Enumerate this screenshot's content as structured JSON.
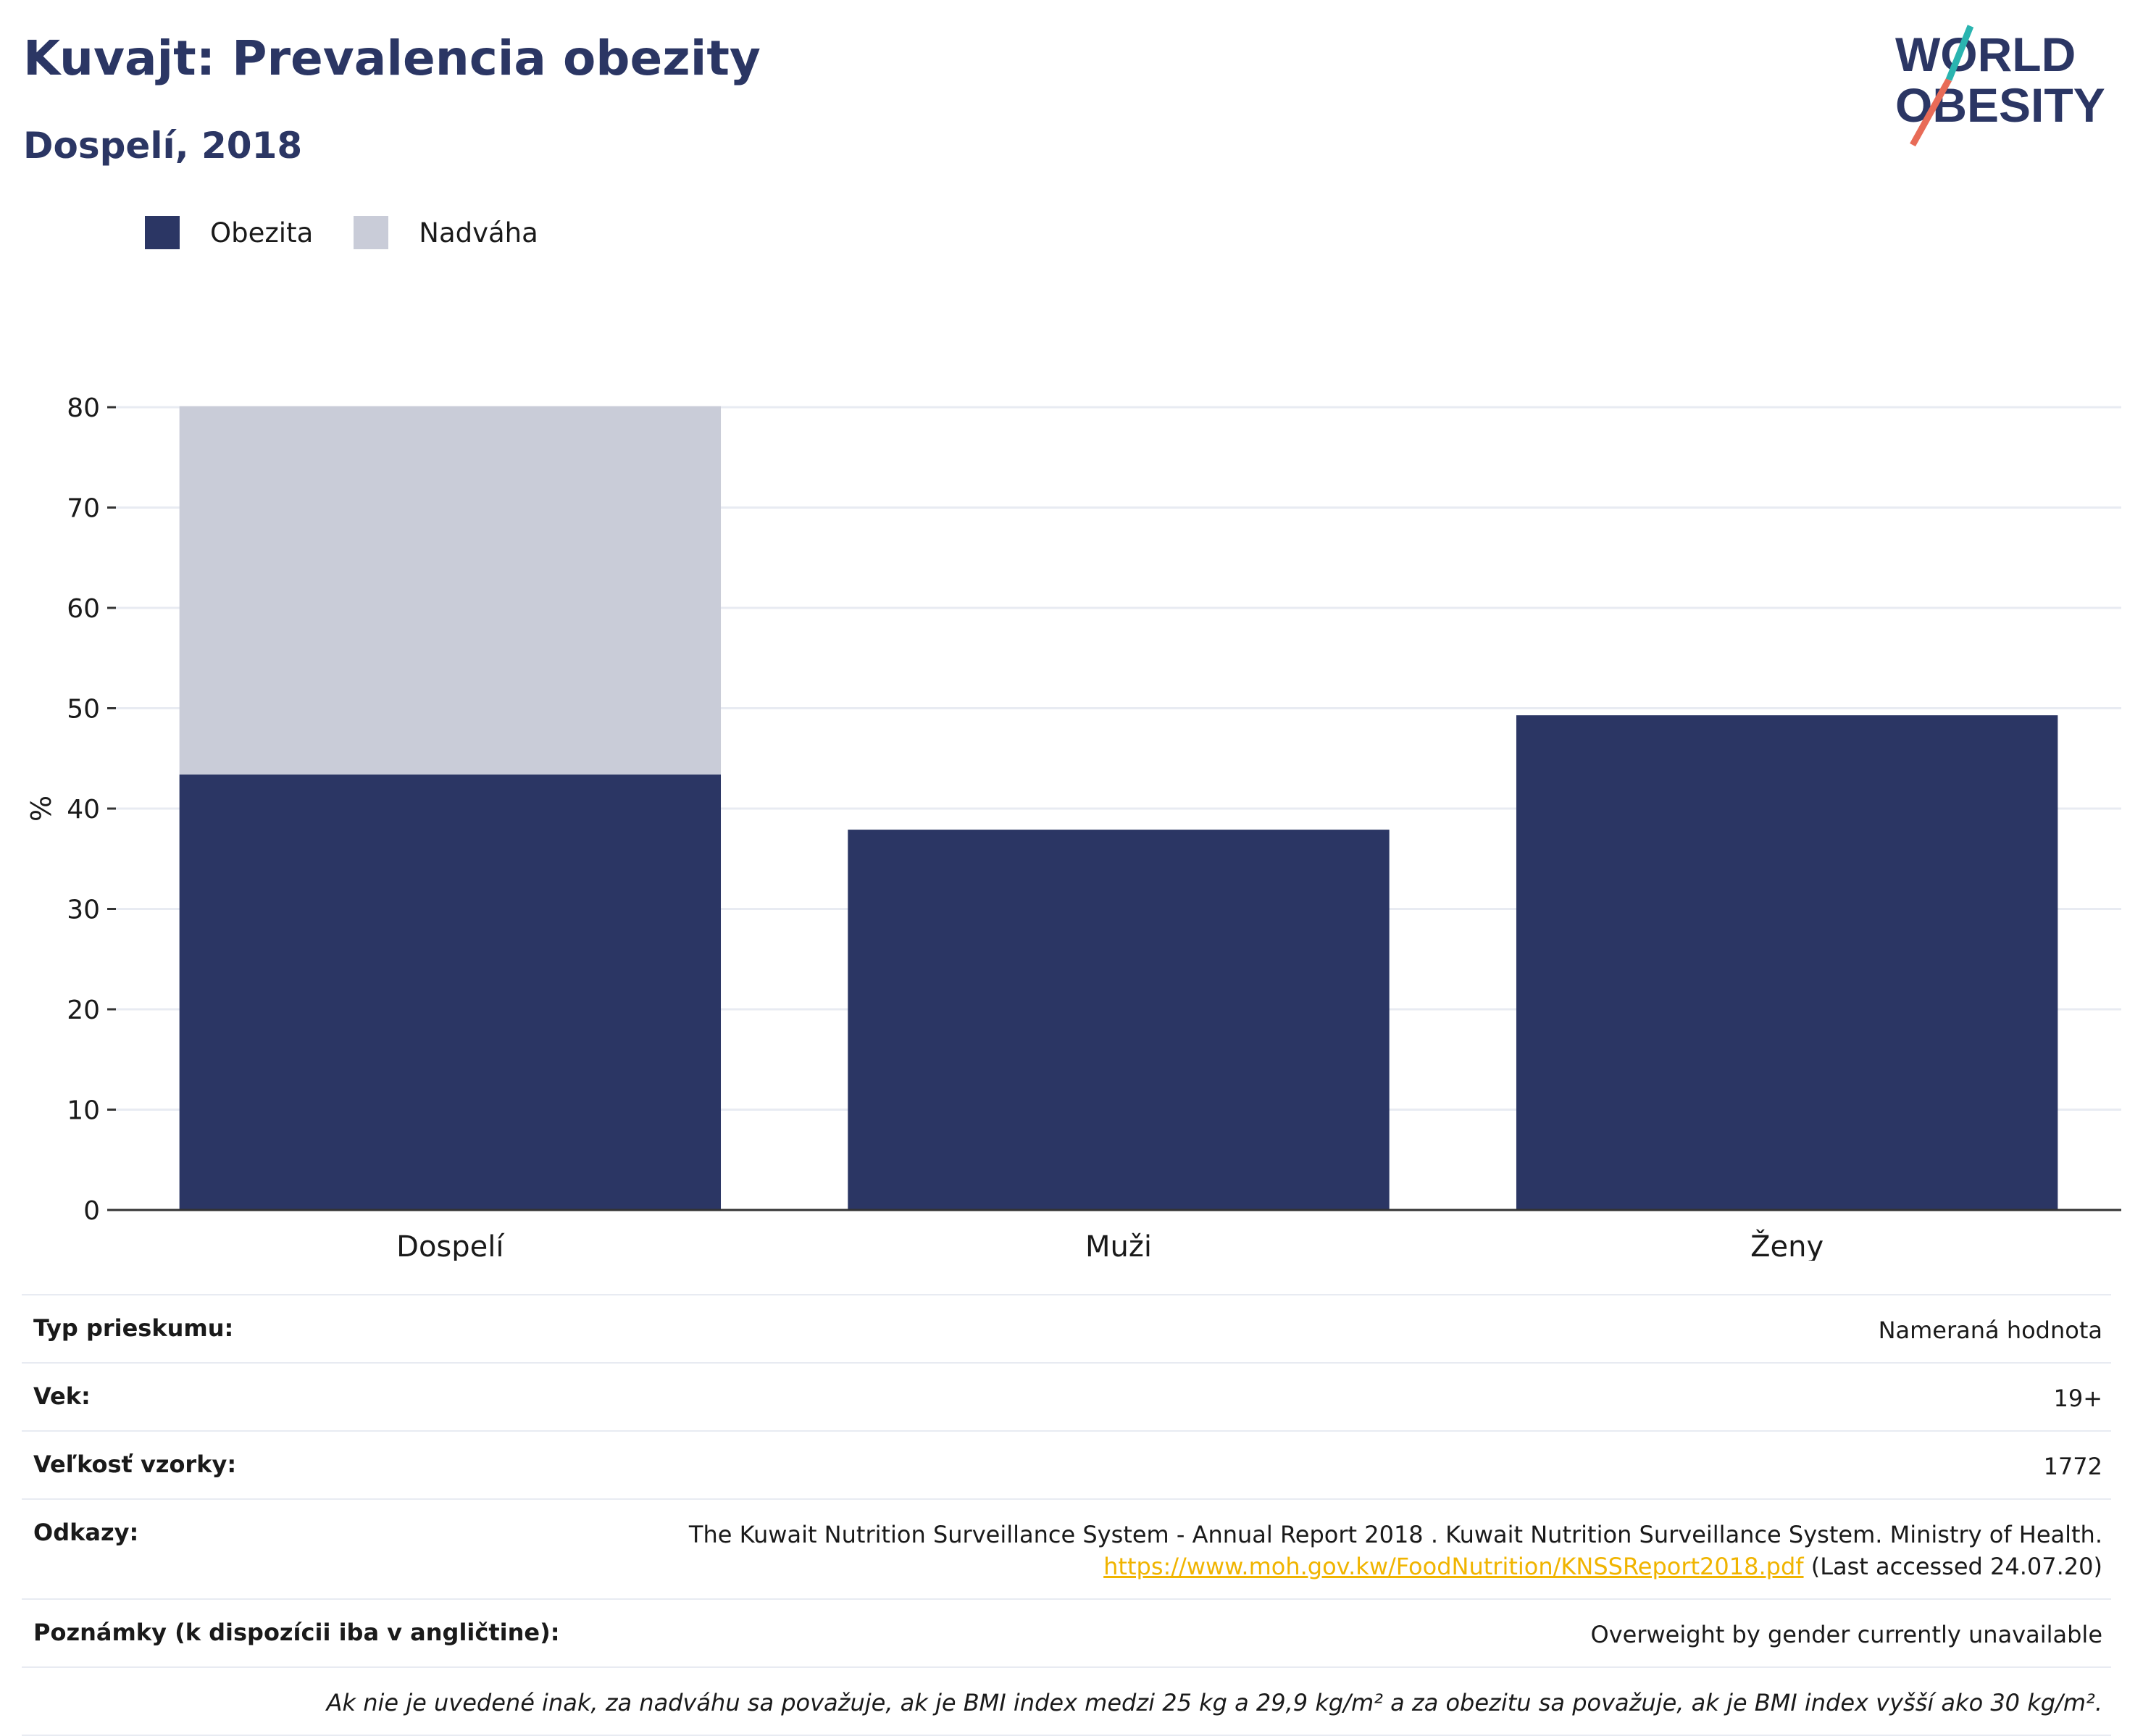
{
  "header": {
    "title": "Kuvajt: Prevalencia obezity",
    "subtitle": "Dospelí, 2018"
  },
  "logo": {
    "line1": "WORLD",
    "line2": "OBESITY"
  },
  "colors": {
    "obesity": "#2b3664",
    "overweight": "#c9ccd8",
    "accent_red": "#e86b57",
    "accent_teal": "#2ab4b0",
    "link": "#f0b400"
  },
  "chart_data": {
    "type": "bar",
    "stacked": true,
    "categories": [
      "Dospelí",
      "Muži",
      "Ženy"
    ],
    "series": [
      {
        "name": "Obezita",
        "values": [
          43.4,
          37.9,
          49.3
        ]
      },
      {
        "name": "Nadváha",
        "values": [
          36.7,
          0,
          0
        ]
      }
    ],
    "ylabel": "%",
    "ylim": [
      0,
      80
    ],
    "yticks": [
      0,
      10,
      20,
      30,
      40,
      50,
      60,
      70,
      80
    ],
    "grid": true,
    "legend": "top-left"
  },
  "info": {
    "rows": [
      {
        "key": "Typ prieskumu:",
        "value": "Nameraná hodnota"
      },
      {
        "key": "Vek:",
        "value": "19+"
      },
      {
        "key": "Veľkosť vzorky:",
        "value": "1772"
      }
    ],
    "refs_key": "Odkazy:",
    "refs_text": "The Kuwait Nutrition Surveillance System - Annual Report 2018 . Kuwait Nutrition Surveillance System. Ministry of Health.",
    "refs_link": "https://www.moh.gov.kw/FoodNutrition/KNSSReport2018.pdf",
    "refs_suffix": " (Last accessed 24.07.20)",
    "notes_key": "Poznámky (k dispozícii iba v angličtine):",
    "notes_value": "Overweight by gender currently unavailable",
    "footnote": "Ak nie je uvedené inak, za nadváhu sa považuje, ak je BMI index medzi 25 kg a 29,9 kg/m² a za obezitu sa považuje, ak je BMI index vyšší ako 30 kg/m²."
  }
}
